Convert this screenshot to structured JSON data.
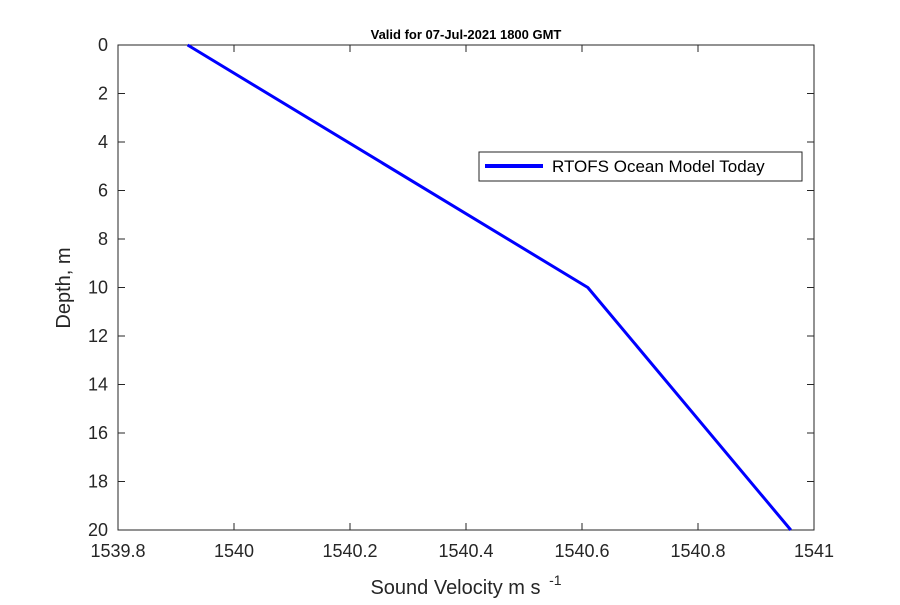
{
  "chart_data": {
    "type": "line",
    "title": "Valid for 07-Jul-2021 1800 GMT",
    "xlabel": "Sound Velocity m s",
    "xlabel_superscript": "-1",
    "ylabel": "Depth, m",
    "xlim": [
      1539.8,
      1541.0
    ],
    "ylim": [
      0,
      20
    ],
    "y_reversed": true,
    "x_ticks": [
      1539.8,
      1540,
      1540.2,
      1540.4,
      1540.6,
      1540.8,
      1541
    ],
    "x_tick_labels": [
      "1539.8",
      "1540",
      "1540.2",
      "1540.4",
      "1540.6",
      "1540.8",
      "1541"
    ],
    "y_ticks": [
      0,
      2,
      4,
      6,
      8,
      10,
      12,
      14,
      16,
      18,
      20
    ],
    "y_tick_labels": [
      "0",
      "2",
      "4",
      "6",
      "8",
      "10",
      "12",
      "14",
      "16",
      "18",
      "20"
    ],
    "grid": false,
    "legend_position": "top-right",
    "series": [
      {
        "name": "RTOFS Ocean Model Today",
        "color": "#0000ff",
        "x": [
          1539.92,
          1540.61,
          1540.96
        ],
        "y": [
          0,
          10,
          20
        ]
      }
    ]
  }
}
